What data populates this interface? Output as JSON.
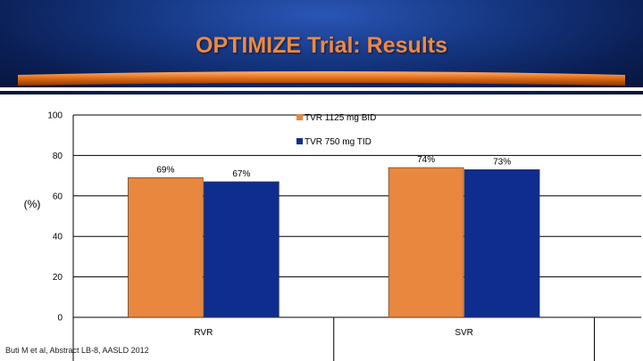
{
  "slide": {
    "title": "OPTIMIZE Trial: Results",
    "footnote": "Buti M et al, Abstract LB-8, AASLD 2012"
  },
  "colors": {
    "title": "#f0883e",
    "series_1": "#e8873d",
    "series_2": "#0f2c8f"
  },
  "chart_data": {
    "type": "bar",
    "title": "",
    "xlabel": "",
    "ylabel": "(%)",
    "ylim": [
      0,
      100
    ],
    "yticks": [
      0,
      20,
      40,
      60,
      80,
      100
    ],
    "grid": true,
    "legend": "top-center",
    "categories": [
      "RVR",
      "SVR"
    ],
    "series": [
      {
        "name": "TVR 1125 mg BID",
        "values": [
          69,
          74
        ],
        "labels": [
          "69%",
          "74%"
        ]
      },
      {
        "name": "TVR 750 mg TID",
        "values": [
          67,
          73
        ],
        "labels": [
          "67%",
          "73%"
        ]
      }
    ]
  }
}
